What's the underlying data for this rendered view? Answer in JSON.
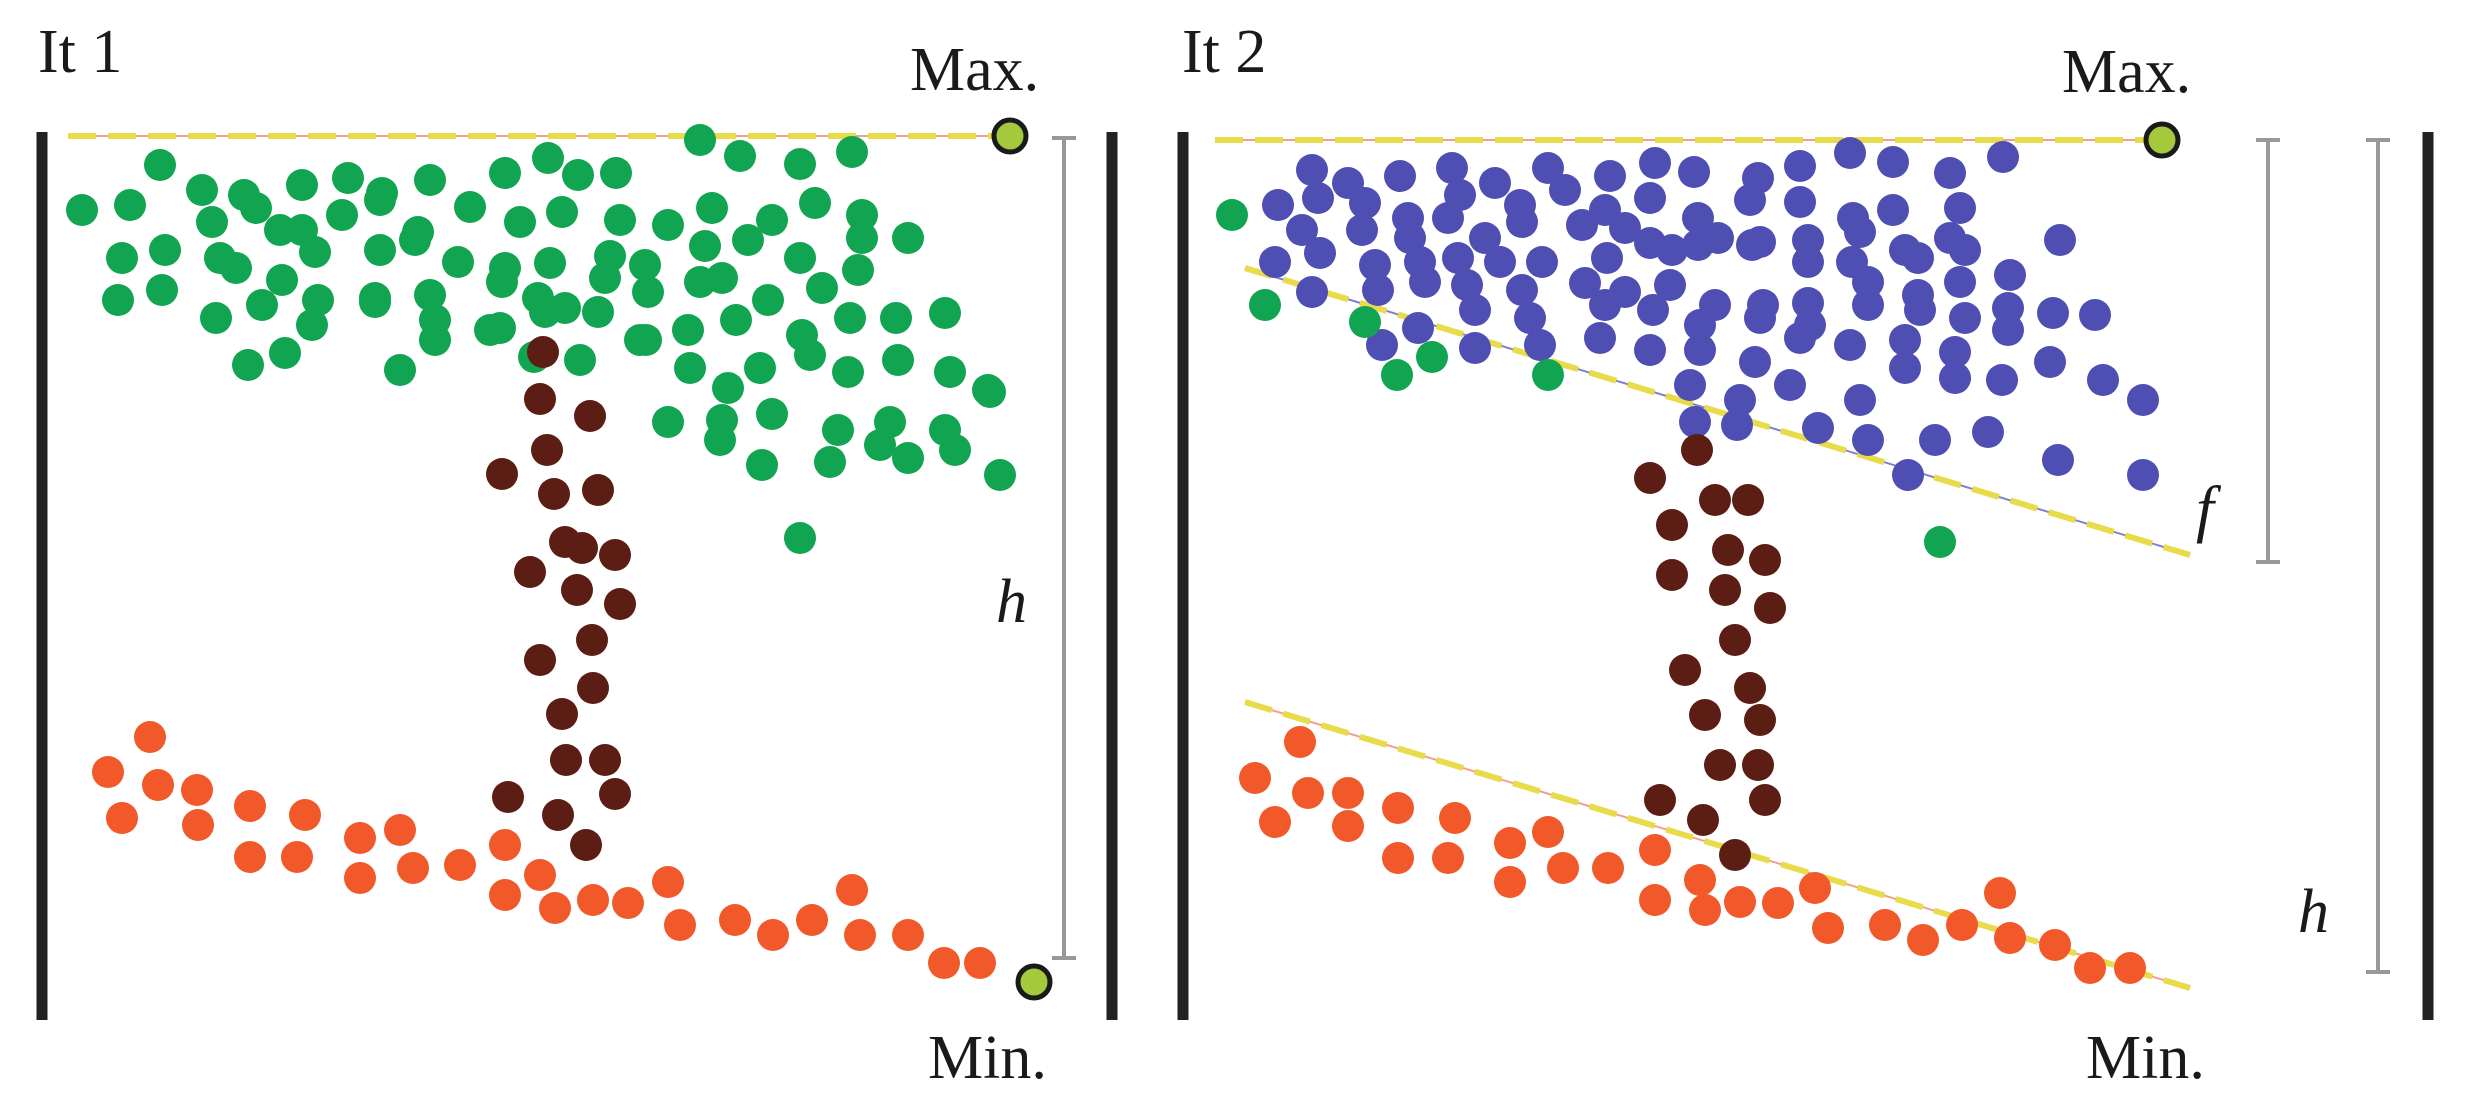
{
  "panels": [
    {
      "id": "it1",
      "title": "It 1",
      "max_label": "Max.",
      "min_label": "Min.",
      "h_label": "h",
      "f_label": ""
    },
    {
      "id": "it2",
      "title": "It 2",
      "max_label": "Max.",
      "min_label": "Min.",
      "h_label": "h",
      "f_label": "f"
    }
  ],
  "colors": {
    "green": "#12a551",
    "brown": "#5c1d14",
    "orange": "#f2592a",
    "blue": "#4f4fb3",
    "marker": "#a4c93c",
    "dashed_line": "#e8dc4b",
    "border": "#222222",
    "bracket": "#999999"
  }
}
